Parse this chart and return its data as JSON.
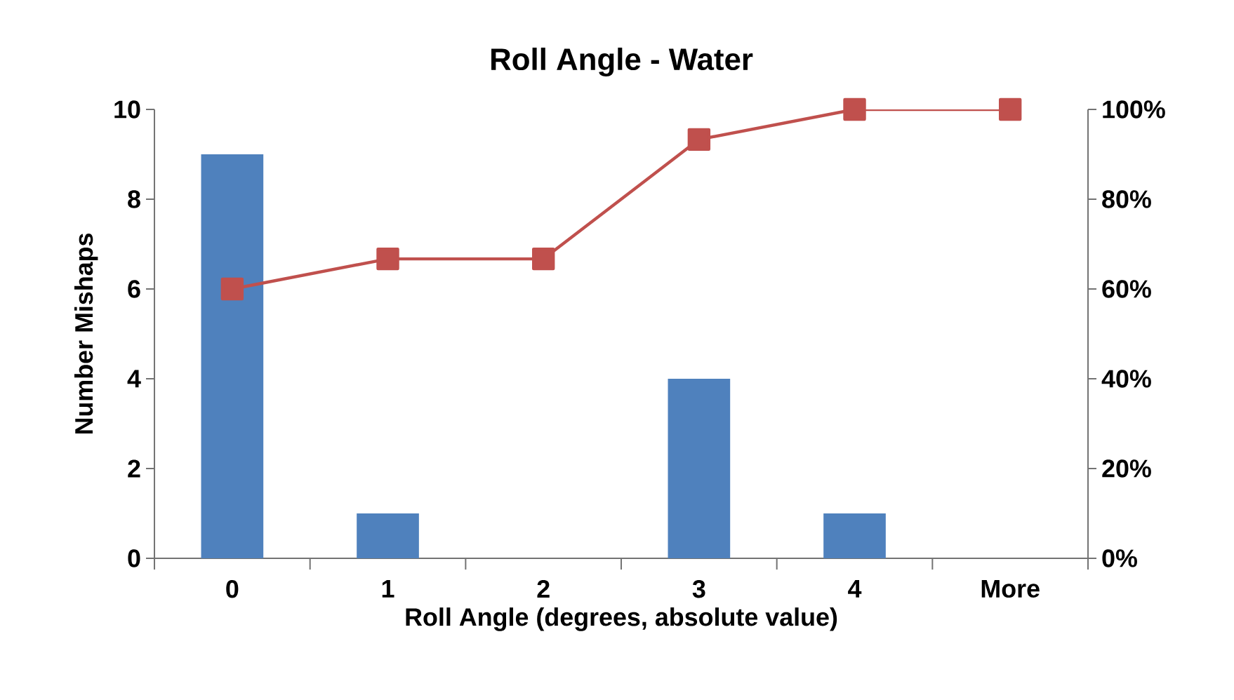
{
  "chart_data": {
    "type": "bar",
    "title": "Roll Angle - Water",
    "xlabel": "Roll Angle (degrees, absolute value)",
    "ylabel": "Number Mishaps",
    "categories": [
      "0",
      "1",
      "2",
      "3",
      "4",
      "More"
    ],
    "series": [
      {
        "color": "#4f81bd",
        "values": [
          9,
          1,
          0,
          4,
          1,
          0
        ]
      },
      {
        "type": "line",
        "axis": "y2",
        "color": "#c0504d",
        "values": [
          60,
          66.7,
          66.7,
          93.3,
          100,
          100
        ]
      }
    ],
    "ylim": [
      0,
      10
    ],
    "yticks": [
      0,
      2,
      4,
      6,
      8,
      10
    ],
    "y2lim": [
      0,
      100
    ],
    "y2ticks": [
      {
        "value": 0,
        "label": "0%"
      },
      {
        "value": 20,
        "label": "20%"
      },
      {
        "value": 40,
        "label": "40%"
      },
      {
        "value": 60,
        "label": "60%"
      },
      {
        "value": 80,
        "label": "80%"
      },
      {
        "value": 100,
        "label": "100%"
      }
    ],
    "marker": "square"
  }
}
